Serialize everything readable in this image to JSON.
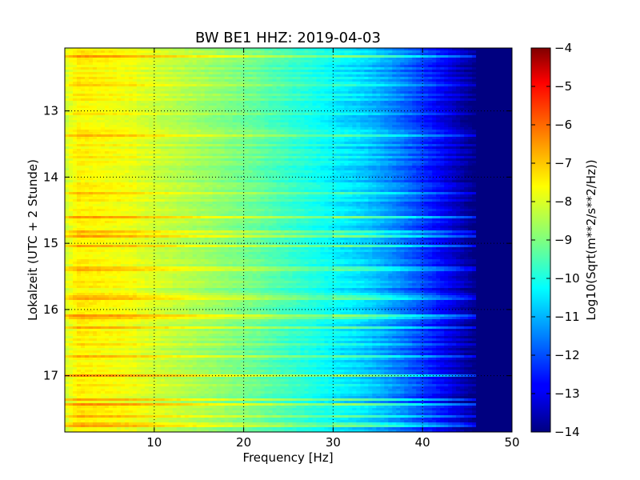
{
  "chart_data": {
    "type": "heatmap",
    "title": "BW BE1 HHZ: 2019-04-03",
    "xlabel": "Frequency [Hz]",
    "ylabel": "Lokalzeit (UTC + 2 Stunde)",
    "xlim": [
      0,
      50
    ],
    "ylim": [
      17.85,
      12.05
    ],
    "x_ticks": [
      10,
      20,
      30,
      40,
      50
    ],
    "y_ticks": [
      13,
      14,
      15,
      16,
      17
    ],
    "grid": true,
    "colorbar": {
      "label": "Log10(Sqrt(m**2/s**2/Hz))",
      "range": [
        -14,
        -4
      ],
      "ticks": [
        -4,
        -5,
        -6,
        -7,
        -8,
        -9,
        -10,
        -11,
        -12,
        -13,
        -14
      ],
      "colormap": "jet"
    },
    "description_values": {
      "low_freq_level": -7.6,
      "mid_freq_level": -9.3,
      "high_freq_level": -14,
      "rolloff_start_hz": 31,
      "rolloff_end_hz": 46
    }
  }
}
